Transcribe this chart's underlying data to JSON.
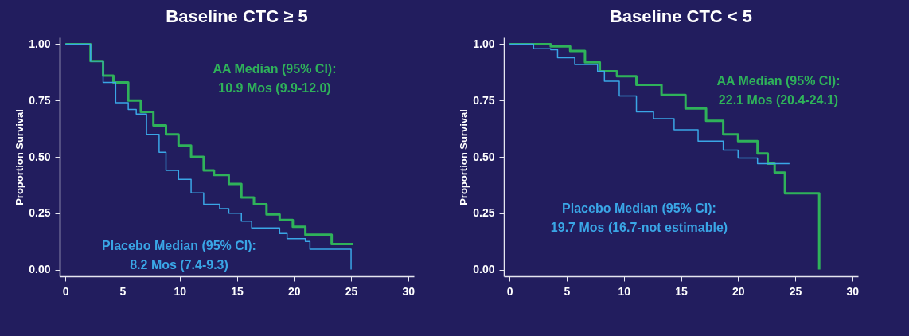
{
  "chart_data": [
    {
      "type": "step",
      "title": "Baseline CTC ≥ 5",
      "ylabel": "Proportion Survival",
      "xlim": [
        -0.5,
        30.5
      ],
      "ylim": [
        -0.03,
        1.03
      ],
      "xticks": [
        0,
        5,
        10,
        15,
        20,
        25,
        30
      ],
      "yticks": [
        {
          "value": 0,
          "label": "0.00"
        },
        {
          "value": 0.25,
          "label": "0.25"
        },
        {
          "value": 0.5,
          "label": "0.50"
        },
        {
          "value": 0.75,
          "label": "0.75"
        },
        {
          "value": 1,
          "label": "1.00"
        }
      ],
      "grid": false,
      "annotations": [
        "AA Median (95% CI):",
        "10.9 Mos (9.9-12.0)",
        "Placebo Median (95% CI):",
        "8.2 Mos (7.4-9.3)"
      ],
      "series": [
        {
          "color": "#2fb25a",
          "x": [
            0,
            0.9,
            2.2,
            3.3,
            4.2,
            5.5,
            6.6,
            7.7,
            8.8,
            9.9,
            11.0,
            12.1,
            13.0,
            13.5,
            14.3,
            15.4,
            16.5,
            17.6,
            18.75,
            19.9,
            21.0,
            23.3,
            25.2
          ],
          "values": [
            1.0,
            1.0,
            0.925,
            0.86,
            0.83,
            0.75,
            0.7,
            0.64,
            0.6,
            0.55,
            0.5,
            0.44,
            0.42,
            0.42,
            0.38,
            0.32,
            0.29,
            0.245,
            0.22,
            0.19,
            0.155,
            0.113,
            0.113
          ]
        },
        {
          "color": "#3aa6e6",
          "x": [
            0,
            2.2,
            3.3,
            4.4,
            5.5,
            6.2,
            7.1,
            8.2,
            8.8,
            9.9,
            11.0,
            12.1,
            13.5,
            14.3,
            15.4,
            16.3,
            17.6,
            18.75,
            19.4,
            21.0,
            21.4,
            25.0,
            25.0
          ],
          "values": [
            1.0,
            0.925,
            0.83,
            0.74,
            0.71,
            0.69,
            0.6,
            0.52,
            0.44,
            0.4,
            0.34,
            0.29,
            0.27,
            0.25,
            0.215,
            0.185,
            0.185,
            0.16,
            0.137,
            0.125,
            0.09,
            0.09,
            0
          ]
        }
      ]
    },
    {
      "type": "step",
      "title": "Baseline CTC < 5",
      "ylabel": "Proportion Survival",
      "xlim": [
        -0.5,
        30.5
      ],
      "ylim": [
        -0.03,
        1.03
      ],
      "xticks": [
        0,
        5,
        10,
        15,
        20,
        25,
        30
      ],
      "yticks": [
        {
          "value": 0,
          "label": "0.00"
        },
        {
          "value": 0.25,
          "label": "0.25"
        },
        {
          "value": 0.5,
          "label": "0.50"
        },
        {
          "value": 0.75,
          "label": "0.75"
        },
        {
          "value": 1,
          "label": "1.00"
        }
      ],
      "grid": false,
      "annotations": [
        "AA Median (95% CI):",
        "22.1 Mos (20.4-24.1)",
        "Placebo Median (95% CI):",
        "19.7 Mos (16.7-not estimable)"
      ],
      "series": [
        {
          "color": "#2fb25a",
          "x": [
            0,
            1.4,
            3.6,
            5.3,
            6.6,
            7.9,
            9.4,
            11.1,
            13.3,
            15.4,
            17.2,
            18.7,
            20.0,
            21.7,
            22.6,
            23.2,
            24.1,
            27.1,
            27.1
          ],
          "values": [
            1.0,
            1.0,
            0.99,
            0.97,
            0.92,
            0.88,
            0.858,
            0.82,
            0.775,
            0.715,
            0.66,
            0.6,
            0.57,
            0.515,
            0.47,
            0.43,
            0.338,
            0.338,
            0
          ]
        },
        {
          "color": "#3aa6e6",
          "x": [
            0,
            1.2,
            2.1,
            3.6,
            4.2,
            5.7,
            7.7,
            8.3,
            9.6,
            11.1,
            12.6,
            14.4,
            16.5,
            18.7,
            20.0,
            21.5,
            21.7,
            24.5
          ],
          "values": [
            1.0,
            1.0,
            0.98,
            0.975,
            0.94,
            0.91,
            0.88,
            0.836,
            0.77,
            0.7,
            0.67,
            0.62,
            0.57,
            0.53,
            0.495,
            0.495,
            0.47,
            0.47
          ]
        }
      ]
    }
  ]
}
